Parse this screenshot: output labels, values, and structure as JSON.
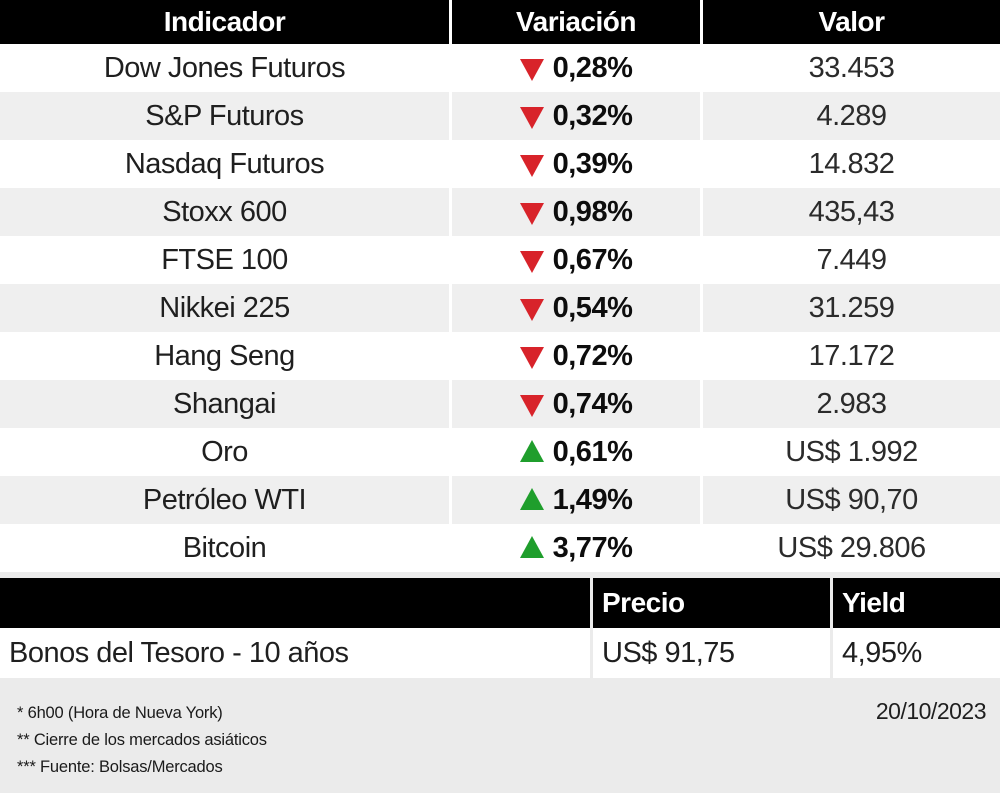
{
  "colors": {
    "red": "#d8232a",
    "green": "#1f9e2c",
    "row-alt": "#efefef",
    "page-bg": "#ebebeb",
    "header-bg": "#000000"
  },
  "chart_data": [
    {
      "type": "table",
      "title": "Indicadores de mercado",
      "columns": [
        "Indicador",
        "Variación",
        "Valor"
      ],
      "rows": [
        {
          "indicator": "Dow Jones Futuros",
          "direction": "down",
          "variation": "0,28%",
          "value": "33.453"
        },
        {
          "indicator": "S&P Futuros",
          "direction": "down",
          "variation": "0,32%",
          "value": "4.289"
        },
        {
          "indicator": "Nasdaq Futuros",
          "direction": "down",
          "variation": "0,39%",
          "value": "14.832"
        },
        {
          "indicator": "Stoxx 600",
          "direction": "down",
          "variation": "0,98%",
          "value": "435,43"
        },
        {
          "indicator": "FTSE 100",
          "direction": "down",
          "variation": "0,67%",
          "value": "7.449"
        },
        {
          "indicator": "Nikkei 225",
          "direction": "down",
          "variation": "0,54%",
          "value": "31.259"
        },
        {
          "indicator": "Hang Seng",
          "direction": "down",
          "variation": "0,72%",
          "value": "17.172"
        },
        {
          "indicator": "Shangai",
          "direction": "down",
          "variation": "0,74%",
          "value": "2.983"
        },
        {
          "indicator": "Oro",
          "direction": "up",
          "variation": "0,61%",
          "value": "US$ 1.992"
        },
        {
          "indicator": "Petróleo WTI",
          "direction": "up",
          "variation": "1,49%",
          "value": "US$ 90,70"
        },
        {
          "indicator": "Bitcoin",
          "direction": "up",
          "variation": "3,77%",
          "value": "US$ 29.806"
        }
      ]
    },
    {
      "type": "table",
      "title": "Bonos",
      "columns": [
        "",
        "Precio",
        "Yield"
      ],
      "rows": [
        {
          "label": "Bonos del Tesoro - 10 años",
          "price": "US$ 91,75",
          "yield": "4,95%"
        }
      ]
    }
  ],
  "footer": {
    "notes": [
      "* 6h00 (Hora de Nueva York)",
      "** Cierre de los mercados asiáticos",
      "*** Fuente: Bolsas/Mercados"
    ],
    "date": "20/10/2023"
  }
}
